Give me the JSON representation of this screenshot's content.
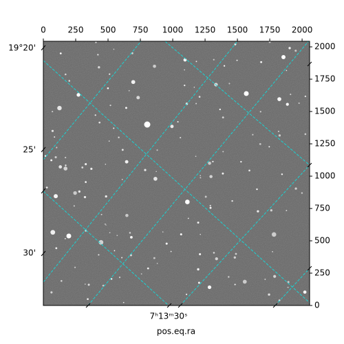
{
  "chart_data": {
    "type": "image",
    "xlabel": "pos.eq.ra",
    "xlim": [
      0,
      2058
    ],
    "ylim": [
      0,
      2043
    ],
    "xticks": [
      0,
      250,
      500,
      750,
      1000,
      1250,
      1500,
      1750,
      2000
    ],
    "yticks": [
      0,
      250,
      500,
      750,
      1000,
      1250,
      1500,
      1750,
      2000
    ],
    "dec_tick_labels": [
      "19°20'",
      "25'",
      "30'"
    ],
    "ra_tick_labels": [
      "7ʰ13ᵐ30ˢ"
    ],
    "grid": true
  }
}
